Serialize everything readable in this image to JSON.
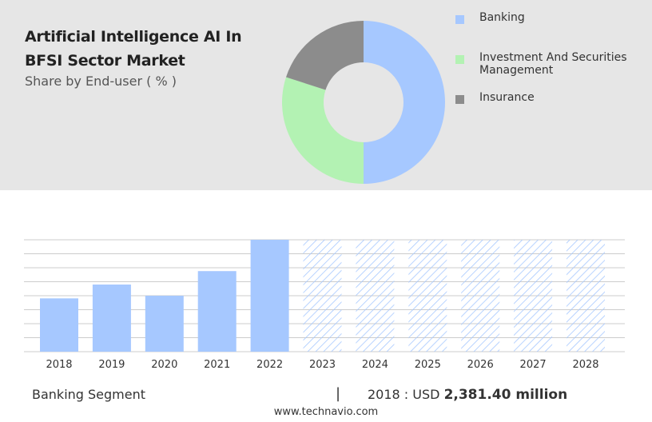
{
  "header": {
    "title": "Artificial Intelligence AI In BFSI Sector Market",
    "subtitle": "Share by End-user ( % )"
  },
  "colors": {
    "banking": "#a6c8ff",
    "investment": "#b3f2b3",
    "insurance": "#8c8c8c",
    "bar": "#a6c8ff",
    "forecast_hatch": "#a6c8ff",
    "panel_bg": "#e6e6e6",
    "grid": "#cccccc"
  },
  "footer": {
    "segment": "Banking Segment",
    "separator": "|",
    "year_prefix": "2018 : USD",
    "value": "2,381.40 million"
  },
  "source": "www.technavio.com",
  "chart_data": [
    {
      "type": "pie",
      "donut": true,
      "title": "",
      "labels": [
        "Banking",
        "Investment And Securities Management",
        "Insurance"
      ],
      "values": [
        50,
        30,
        20
      ],
      "legend": "right"
    },
    {
      "type": "bar",
      "title": "",
      "categories": [
        "2018",
        "2019",
        "2020",
        "2021",
        "2022",
        "2023",
        "2024",
        "2025",
        "2026",
        "2027",
        "2028"
      ],
      "values": [
        2381.4,
        3000,
        2500,
        3600,
        5000,
        5000,
        5000,
        5000,
        5000,
        5000,
        5000
      ],
      "forecast_from": "2023",
      "ylim": [
        0,
        5000
      ],
      "grid": true,
      "xlabel": "",
      "ylabel": ""
    }
  ]
}
